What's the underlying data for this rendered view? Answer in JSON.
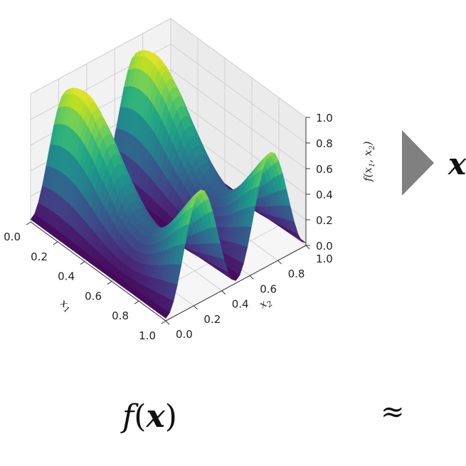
{
  "chart_data": {
    "type": "surface3d",
    "title": "",
    "x1": {
      "label": "x₁",
      "range": [
        0.0,
        1.0
      ],
      "ticks": [
        "0.0",
        "0.2",
        "0.4",
        "0.6",
        "0.8",
        "1.0"
      ]
    },
    "x2": {
      "label": "x₂",
      "range": [
        0.0,
        1.0
      ],
      "ticks": [
        "0.0",
        "0.2",
        "0.4",
        "0.6",
        "0.8",
        "1.0"
      ]
    },
    "z": {
      "label": "f(x₁, x₂)",
      "range": [
        0.0,
        1.0
      ],
      "ticks": [
        "0.0",
        "0.2",
        "0.4",
        "0.6",
        "0.8",
        "1.0"
      ]
    },
    "colormap": "viridis",
    "grid": true,
    "colors": {
      "low": "#440154",
      "mid": "#21918c",
      "high": "#fde725",
      "arrow": "#808080"
    }
  },
  "formula": {
    "left": "f(x)",
    "approx": "≈",
    "partial_right": "x"
  }
}
